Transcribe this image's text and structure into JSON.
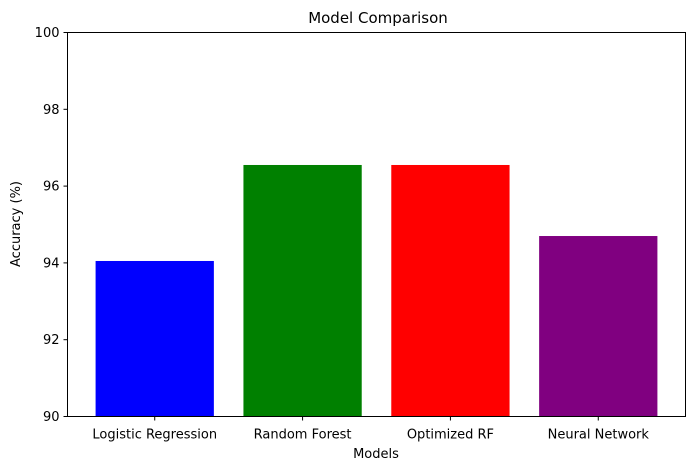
{
  "chart_data": {
    "type": "bar",
    "title": "Model Comparison",
    "xlabel": "Models",
    "ylabel": "Accuracy (%)",
    "categories": [
      "Logistic Regression",
      "Random Forest",
      "Optimized RF",
      "Neural Network"
    ],
    "values": [
      94.05,
      96.55,
      96.55,
      94.7
    ],
    "colors": [
      "#0000ff",
      "#008000",
      "#ff0000",
      "#800080"
    ],
    "ylim": [
      90,
      100
    ],
    "yticks": [
      90,
      92,
      94,
      96,
      98,
      100
    ],
    "grid": false,
    "legend": false
  }
}
